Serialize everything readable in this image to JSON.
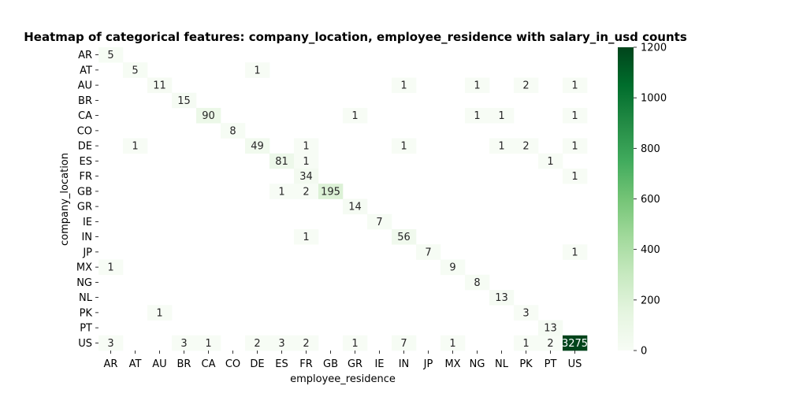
{
  "chart_data": {
    "type": "heatmap",
    "title": "Heatmap of categorical features: company_location, employee_residence with salary_in_usd counts",
    "xlabel": "employee_residence",
    "ylabel": "company_location",
    "x_categories": [
      "AR",
      "AT",
      "AU",
      "BR",
      "CA",
      "CO",
      "DE",
      "ES",
      "FR",
      "GB",
      "GR",
      "IE",
      "IN",
      "JP",
      "MX",
      "NG",
      "NL",
      "PK",
      "PT",
      "US"
    ],
    "y_categories": [
      "AR",
      "AT",
      "AU",
      "BR",
      "CA",
      "CO",
      "DE",
      "ES",
      "FR",
      "GB",
      "GR",
      "IE",
      "IN",
      "JP",
      "MX",
      "NG",
      "NL",
      "PK",
      "PT",
      "US"
    ],
    "cells": [
      {
        "y": "AR",
        "x": "AR",
        "value": 5
      },
      {
        "y": "AT",
        "x": "AT",
        "value": 5
      },
      {
        "y": "AT",
        "x": "DE",
        "value": 1
      },
      {
        "y": "AU",
        "x": "AU",
        "value": 11
      },
      {
        "y": "AU",
        "x": "IN",
        "value": 1
      },
      {
        "y": "AU",
        "x": "NG",
        "value": 1
      },
      {
        "y": "AU",
        "x": "PK",
        "value": 2
      },
      {
        "y": "AU",
        "x": "US",
        "value": 1
      },
      {
        "y": "BR",
        "x": "BR",
        "value": 15
      },
      {
        "y": "CA",
        "x": "CA",
        "value": 90
      },
      {
        "y": "CA",
        "x": "GR",
        "value": 1
      },
      {
        "y": "CA",
        "x": "NG",
        "value": 1
      },
      {
        "y": "CA",
        "x": "NL",
        "value": 1
      },
      {
        "y": "CA",
        "x": "US",
        "value": 1
      },
      {
        "y": "CO",
        "x": "CO",
        "value": 8
      },
      {
        "y": "DE",
        "x": "AT",
        "value": 1
      },
      {
        "y": "DE",
        "x": "DE",
        "value": 49
      },
      {
        "y": "DE",
        "x": "FR",
        "value": 1
      },
      {
        "y": "DE",
        "x": "IN",
        "value": 1
      },
      {
        "y": "DE",
        "x": "NL",
        "value": 1
      },
      {
        "y": "DE",
        "x": "PK",
        "value": 2
      },
      {
        "y": "DE",
        "x": "US",
        "value": 1
      },
      {
        "y": "ES",
        "x": "ES",
        "value": 81
      },
      {
        "y": "ES",
        "x": "FR",
        "value": 1
      },
      {
        "y": "ES",
        "x": "PT",
        "value": 1
      },
      {
        "y": "FR",
        "x": "FR",
        "value": 34
      },
      {
        "y": "FR",
        "x": "US",
        "value": 1
      },
      {
        "y": "GB",
        "x": "ES",
        "value": 1
      },
      {
        "y": "GB",
        "x": "FR",
        "value": 2
      },
      {
        "y": "GB",
        "x": "GB",
        "value": 195
      },
      {
        "y": "GR",
        "x": "GR",
        "value": 14
      },
      {
        "y": "IE",
        "x": "IE",
        "value": 7
      },
      {
        "y": "IN",
        "x": "FR",
        "value": 1
      },
      {
        "y": "IN",
        "x": "IN",
        "value": 56
      },
      {
        "y": "JP",
        "x": "JP",
        "value": 7
      },
      {
        "y": "JP",
        "x": "US",
        "value": 1
      },
      {
        "y": "MX",
        "x": "AR",
        "value": 1
      },
      {
        "y": "MX",
        "x": "MX",
        "value": 9
      },
      {
        "y": "NG",
        "x": "NG",
        "value": 8
      },
      {
        "y": "NL",
        "x": "NL",
        "value": 13
      },
      {
        "y": "PK",
        "x": "AU",
        "value": 1
      },
      {
        "y": "PK",
        "x": "PK",
        "value": 3
      },
      {
        "y": "PT",
        "x": "PT",
        "value": 13
      },
      {
        "y": "US",
        "x": "AR",
        "value": 3
      },
      {
        "y": "US",
        "x": "BR",
        "value": 3
      },
      {
        "y": "US",
        "x": "CA",
        "value": 1
      },
      {
        "y": "US",
        "x": "DE",
        "value": 2
      },
      {
        "y": "US",
        "x": "ES",
        "value": 3
      },
      {
        "y": "US",
        "x": "FR",
        "value": 2
      },
      {
        "y": "US",
        "x": "GR",
        "value": 1
      },
      {
        "y": "US",
        "x": "IN",
        "value": 7
      },
      {
        "y": "US",
        "x": "MX",
        "value": 1
      },
      {
        "y": "US",
        "x": "PK",
        "value": 1
      },
      {
        "y": "US",
        "x": "PT",
        "value": 2
      },
      {
        "y": "US",
        "x": "US",
        "value": 3275
      }
    ],
    "colorbar": {
      "range": [
        0,
        1200
      ],
      "ticks": [
        0,
        200,
        400,
        600,
        800,
        1000,
        1200
      ],
      "colormap": "Greens",
      "color_low": "#f7fcf5",
      "color_high": "#00441b"
    },
    "annotation_dark_text_color": "#262626",
    "annotation_light_text_color": "#ffffff"
  }
}
